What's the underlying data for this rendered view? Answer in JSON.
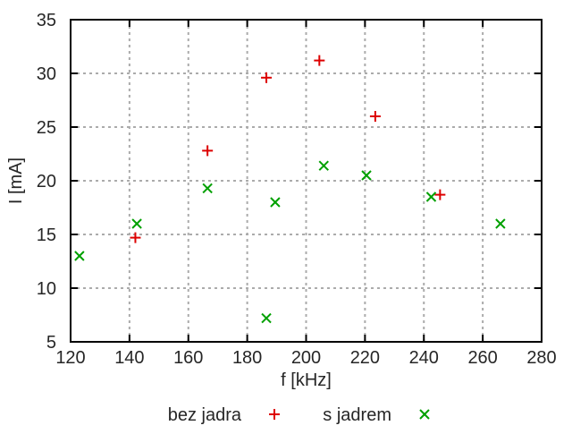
{
  "chart_data": {
    "type": "scatter",
    "title": "",
    "xlabel": "f [kHz]",
    "ylabel": "I [mA]",
    "xlim": [
      120,
      280
    ],
    "ylim": [
      5,
      35
    ],
    "xticks": [
      120,
      140,
      160,
      180,
      200,
      220,
      240,
      260,
      280
    ],
    "yticks": [
      5,
      10,
      15,
      20,
      25,
      30,
      35
    ],
    "grid": "dotted",
    "legend_position": "below-center",
    "series": [
      {
        "name": "bez jadra",
        "marker": "plus",
        "color": "#dd0000",
        "points": [
          [
            142,
            14.7
          ],
          [
            166.5,
            22.8
          ],
          [
            186.5,
            29.6
          ],
          [
            204.5,
            31.2
          ],
          [
            223.5,
            26.0
          ],
          [
            245.5,
            18.7
          ]
        ]
      },
      {
        "name": "s jadrem",
        "marker": "cross",
        "color": "#00a000",
        "points": [
          [
            123,
            13.0
          ],
          [
            142.5,
            16.0
          ],
          [
            166.5,
            19.3
          ],
          [
            186.5,
            7.2
          ],
          [
            189.5,
            18.0
          ],
          [
            206,
            21.4
          ],
          [
            220.5,
            20.5
          ],
          [
            242.5,
            18.5
          ],
          [
            266,
            16.0
          ]
        ]
      }
    ]
  },
  "colors": {
    "background": "#ffffff",
    "axis": "#000000",
    "grid": "#ababab",
    "text": "#262626"
  }
}
